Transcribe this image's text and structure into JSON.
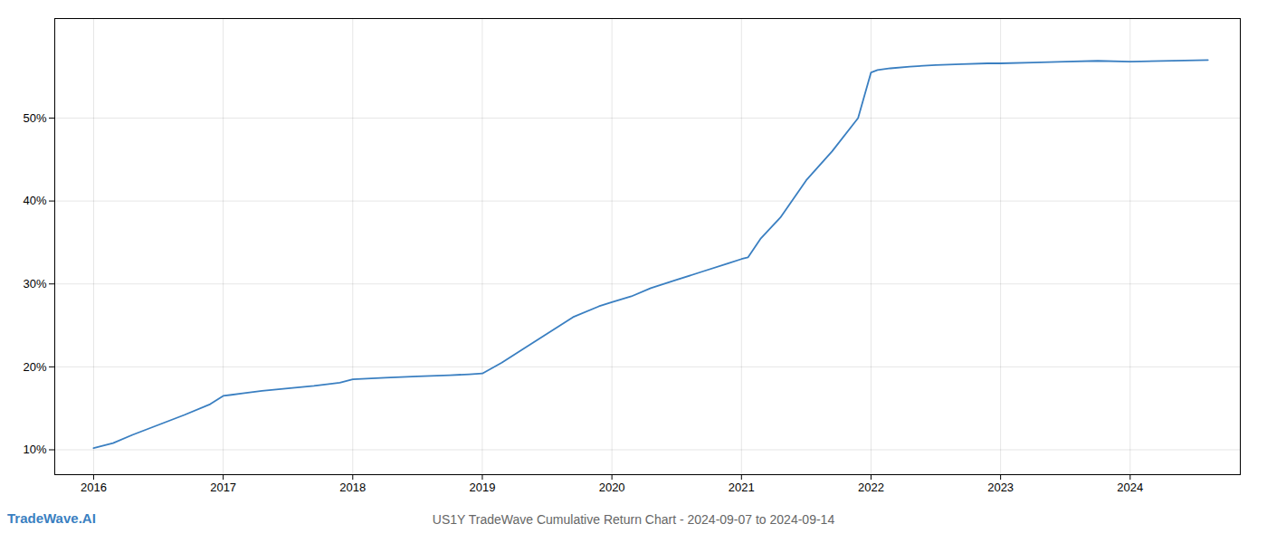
{
  "chart_data": {
    "type": "line",
    "title": "US1Y TradeWave Cumulative Return Chart - 2024-09-07 to 2024-09-14",
    "annotation": "TradeWave.AI",
    "x": [
      2016.0,
      2016.15,
      2016.3,
      2016.5,
      2016.7,
      2016.9,
      2017.0,
      2017.15,
      2017.3,
      2017.5,
      2017.7,
      2017.9,
      2018.0,
      2018.25,
      2018.5,
      2018.75,
      2018.9,
      2019.0,
      2019.15,
      2019.3,
      2019.5,
      2019.7,
      2019.9,
      2020.0,
      2020.15,
      2020.3,
      2020.5,
      2020.7,
      2020.9,
      2021.0,
      2021.05,
      2021.15,
      2021.3,
      2021.5,
      2021.7,
      2021.9,
      2022.0,
      2022.05,
      2022.15,
      2022.3,
      2022.5,
      2022.7,
      2022.9,
      2023.0,
      2023.25,
      2023.5,
      2023.75,
      2024.0,
      2024.6
    ],
    "values": [
      10.2,
      10.8,
      11.8,
      13.0,
      14.2,
      15.5,
      16.5,
      16.8,
      17.1,
      17.4,
      17.7,
      18.1,
      18.5,
      18.7,
      18.85,
      19.0,
      19.1,
      19.2,
      20.5,
      22.0,
      24.0,
      26.0,
      27.3,
      27.8,
      28.5,
      29.5,
      30.5,
      31.5,
      32.5,
      33.0,
      33.2,
      35.5,
      38.0,
      42.5,
      46.0,
      50.0,
      55.5,
      55.8,
      56.0,
      56.2,
      56.4,
      56.5,
      56.6,
      56.6,
      56.7,
      56.8,
      56.9,
      56.8,
      57.0
    ],
    "color": "#3a7fc1",
    "xlim": [
      2015.7,
      2024.85
    ],
    "ylim": [
      7,
      62
    ],
    "xticks": [
      2016,
      2017,
      2018,
      2019,
      2020,
      2021,
      2022,
      2023,
      2024
    ],
    "yticks": [
      {
        "value": 10,
        "label": "10%"
      },
      {
        "value": 20,
        "label": "20%"
      },
      {
        "value": 30,
        "label": "30%"
      },
      {
        "value": 40,
        "label": "40%"
      },
      {
        "value": 50,
        "label": "50%"
      }
    ],
    "grid": true
  }
}
